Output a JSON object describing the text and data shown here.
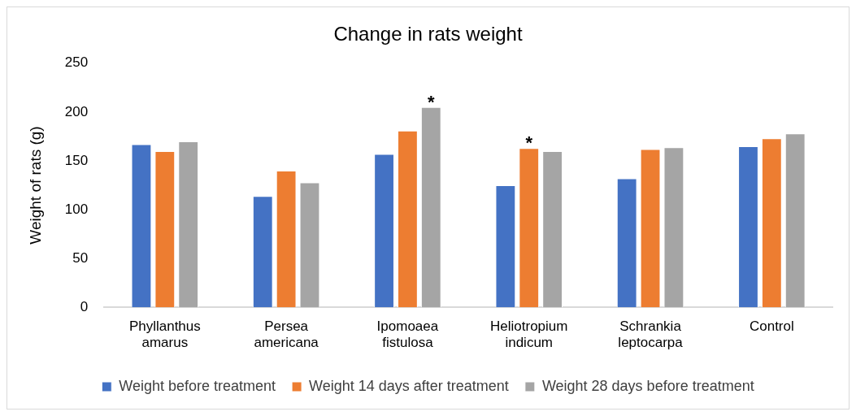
{
  "chart_data": {
    "type": "bar",
    "title": "Change in rats weight",
    "ylabel": "Weight of rats (g)",
    "categories": [
      "Phyllanthus amarus",
      "Persea americana",
      "Ipomoaea fistulosa",
      "Heliotropium indicum",
      "Schrankia leptocarpa",
      "Control"
    ],
    "series": [
      {
        "name": "Weight before treatment",
        "color": "#4472c4",
        "values": [
          167,
          114,
          157,
          125,
          132,
          165
        ]
      },
      {
        "name": "Weight 14 days after treatment",
        "color": "#ed7d31",
        "values": [
          160,
          140,
          181,
          163,
          162,
          173
        ]
      },
      {
        "name": "Weight 28 days before treatment",
        "color": "#a5a5a5",
        "values": [
          170,
          128,
          205,
          160,
          164,
          178
        ]
      }
    ],
    "ylim": [
      0,
      250
    ],
    "yticks": [
      0,
      50,
      100,
      150,
      200,
      250
    ],
    "grid": false,
    "legend": "bottom",
    "annotations": [
      "*",
      {
        "text": "*",
        "x": "Heliotropium indicum",
        "y": 163
      }
    ]
  }
}
